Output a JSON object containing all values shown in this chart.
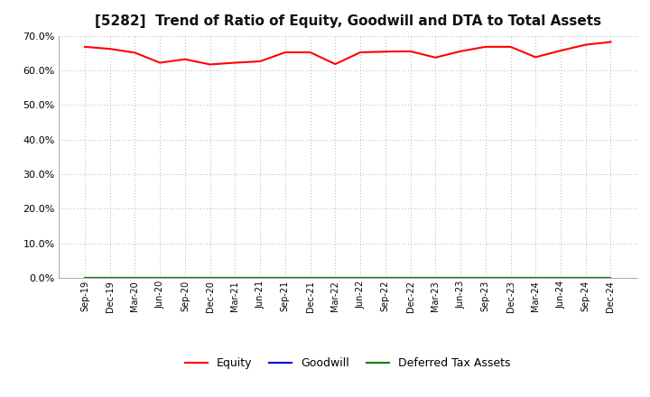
{
  "title": "[5282]  Trend of Ratio of Equity, Goodwill and DTA to Total Assets",
  "x_labels": [
    "Sep-19",
    "Dec-19",
    "Mar-20",
    "Jun-20",
    "Sep-20",
    "Dec-20",
    "Mar-21",
    "Jun-21",
    "Sep-21",
    "Dec-21",
    "Mar-22",
    "Jun-22",
    "Sep-22",
    "Dec-22",
    "Mar-23",
    "Jun-23",
    "Sep-23",
    "Dec-23",
    "Mar-24",
    "Jun-24",
    "Sep-24",
    "Dec-24"
  ],
  "equity": [
    0.668,
    0.662,
    0.651,
    0.622,
    0.632,
    0.617,
    0.622,
    0.626,
    0.652,
    0.652,
    0.618,
    0.652,
    0.654,
    0.655,
    0.637,
    0.655,
    0.668,
    0.668,
    0.638,
    0.657,
    0.674,
    0.682
  ],
  "goodwill": [
    0.0,
    0.0,
    0.0,
    0.0,
    0.0,
    0.0,
    0.0,
    0.0,
    0.0,
    0.0,
    0.0,
    0.0,
    0.0,
    0.0,
    0.0,
    0.0,
    0.0,
    0.0,
    0.0,
    0.0,
    0.0,
    0.0
  ],
  "dta": [
    0.0,
    0.0,
    0.0,
    0.0,
    0.0,
    0.0,
    0.0,
    0.0,
    0.0,
    0.0,
    0.0,
    0.0,
    0.0,
    0.0,
    0.0,
    0.0,
    0.0,
    0.0,
    0.0,
    0.0,
    0.0,
    0.0
  ],
  "equity_color": "#ff0000",
  "goodwill_color": "#0000cc",
  "dta_color": "#008000",
  "ylim": [
    0.0,
    0.7
  ],
  "yticks": [
    0.0,
    0.1,
    0.2,
    0.3,
    0.4,
    0.5,
    0.6,
    0.7
  ],
  "background_color": "#ffffff",
  "grid_color": "#999999",
  "title_fontsize": 11,
  "tick_fontsize": 7,
  "legend_labels": [
    "Equity",
    "Goodwill",
    "Deferred Tax Assets"
  ]
}
